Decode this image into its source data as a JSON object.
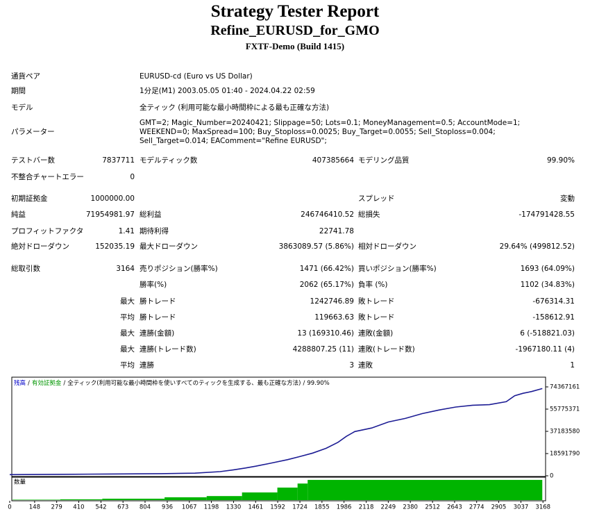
{
  "header": {
    "title": "Strategy Tester Report",
    "subtitle": "Refine_EURUSD_for_GMO",
    "server": "FXTF-Demo (Build 1415)"
  },
  "info": [
    {
      "label": "通貨ペア",
      "value": "EURUSD-cd (Euro vs US Dollar)"
    },
    {
      "label": "期間",
      "value": "1分足(M1) 2003.05.05 01:40 - 2024.04.22 02:59"
    },
    {
      "label": "モデル",
      "value": "全ティック (利用可能な最小時間枠による最も正確な方法)"
    },
    {
      "label": "パラメーター",
      "value": "GMT=2; Magic_Number=20240421; Slippage=50; Lots=0.1; MoneyManagement=0.5; AccountMode=1; WEEKEND=0; MaxSpread=100; Buy_Stoploss=0.0025; Buy_Target=0.0055; Sell_Stoploss=0.004; Sell_Target=0.014; EAComment=\"Refine EURUSD\";"
    }
  ],
  "stats": [
    {
      "c1": {
        "label": "テストバー数",
        "value": "7837711"
      },
      "c2": {
        "label": "モデルティック数",
        "value": "407385664"
      },
      "c3": {
        "label": "モデリング品質",
        "value": "99.90%"
      }
    },
    {
      "c1": {
        "label": "不整合チャートエラー",
        "value": "0"
      }
    },
    {
      "c1": {
        "label": "初期証拠金",
        "value": "1000000.00"
      },
      "c3": {
        "label": "スプレッド",
        "value": "変動"
      }
    },
    {
      "c1": {
        "label": "純益",
        "value": "71954981.97"
      },
      "c2": {
        "label": "総利益",
        "value": "246746410.52"
      },
      "c3": {
        "label": "総損失",
        "value": "-174791428.55"
      }
    },
    {
      "c1": {
        "label": "プロフィットファクタ",
        "value": "1.41"
      },
      "c2": {
        "label": "期待利得",
        "value": "22741.78"
      }
    },
    {
      "c1": {
        "label": "絶対ドローダウン",
        "value": "152035.19"
      },
      "c2": {
        "label": "最大ドローダウン",
        "value": "3863089.57 (5.86%)"
      },
      "c3": {
        "label": "相対ドローダウン",
        "value": "29.64% (499812.52)"
      }
    },
    {
      "c1": {
        "label": "総取引数",
        "value": "3164"
      },
      "c2": {
        "label": "売りポジション(勝率%)",
        "value": "1471 (66.42%)"
      },
      "c3": {
        "label": "買いポジション(勝率%)",
        "value": "1693 (64.09%)"
      }
    },
    {
      "c2": {
        "label": "勝率(%)",
        "value": "2062 (65.17%)"
      },
      "c3": {
        "label": "負率 (%)",
        "value": "1102 (34.83%)"
      }
    },
    {
      "prefix": "最大",
      "c2": {
        "label": "勝トレード",
        "value": "1242746.89"
      },
      "c3": {
        "label": "敗トレード",
        "value": "-676314.31"
      }
    },
    {
      "prefix": "平均",
      "c2": {
        "label": "勝トレード",
        "value": "119663.63"
      },
      "c3": {
        "label": "敗トレード",
        "value": "-158612.91"
      }
    },
    {
      "prefix": "最大",
      "c2": {
        "label": "連勝(金額)",
        "value": "13 (169310.46)"
      },
      "c3": {
        "label": "連敗(金額)",
        "value": "6 (-518821.03)"
      }
    },
    {
      "prefix": "最大",
      "c2": {
        "label": "連勝(トレード数)",
        "value": "4288807.25 (11)"
      },
      "c3": {
        "label": "連敗(トレード数)",
        "value": "-1967180.11 (4)"
      }
    },
    {
      "prefix": "平均",
      "c2": {
        "label": "連勝",
        "value": "3"
      },
      "c3": {
        "label": "連敗",
        "value": "1"
      }
    }
  ],
  "chart_data": {
    "type": "line",
    "legend": [
      {
        "text": "残高",
        "color": "#0000c8"
      },
      {
        "text": "有効証拠金",
        "color": "#009600"
      },
      {
        "text": "全ティック(利用可能な最小時間枠を使いすべてのティックを生成する、最も正確な方法)",
        "color": "#000000"
      },
      {
        "text": "99.90%",
        "color": "#000000"
      }
    ],
    "legend_separator": "/",
    "series": [
      {
        "color": "#1c1c94",
        "x": [
          0,
          300,
          600,
          900,
          1100,
          1250,
          1330,
          1400,
          1461,
          1550,
          1650,
          1720,
          1800,
          1880,
          1950,
          2000,
          2050,
          2150,
          2250,
          2350,
          2450,
          2550,
          2650,
          2750,
          2850,
          2950,
          3000,
          3050,
          3100,
          3164
        ],
        "values": [
          1000000,
          1200000,
          1500000,
          1800000,
          2200000,
          3500000,
          5000000,
          6500000,
          8000000,
          10500000,
          13500000,
          16000000,
          19000000,
          23000000,
          28000000,
          33000000,
          37000000,
          40000000,
          45000000,
          48000000,
          52000000,
          55000000,
          57500000,
          59000000,
          59500000,
          62000000,
          67000000,
          69000000,
          70500000,
          72950000
        ]
      }
    ],
    "xlim": [
      0,
      3200
    ],
    "xticks": [
      0,
      148,
      279,
      410,
      542,
      673,
      804,
      936,
      1067,
      1198,
      1330,
      1461,
      1592,
      1724,
      1855,
      1986,
      2118,
      2249,
      2380,
      2512,
      2643,
      2774,
      2905,
      3037,
      3168
    ],
    "ylim": [
      0,
      82500000
    ],
    "yticks": [
      0,
      18591790,
      37183580,
      55775371,
      74367161
    ],
    "volume": {
      "label": "数量",
      "color": "#00b400",
      "bins": [
        0,
        300,
        550,
        920,
        1170,
        1380,
        1590,
        1710,
        1770,
        3164
      ],
      "values": [
        1,
        2,
        3.5,
        7,
        10,
        19,
        31,
        41,
        50
      ],
      "ylim": [
        0,
        55
      ]
    }
  }
}
